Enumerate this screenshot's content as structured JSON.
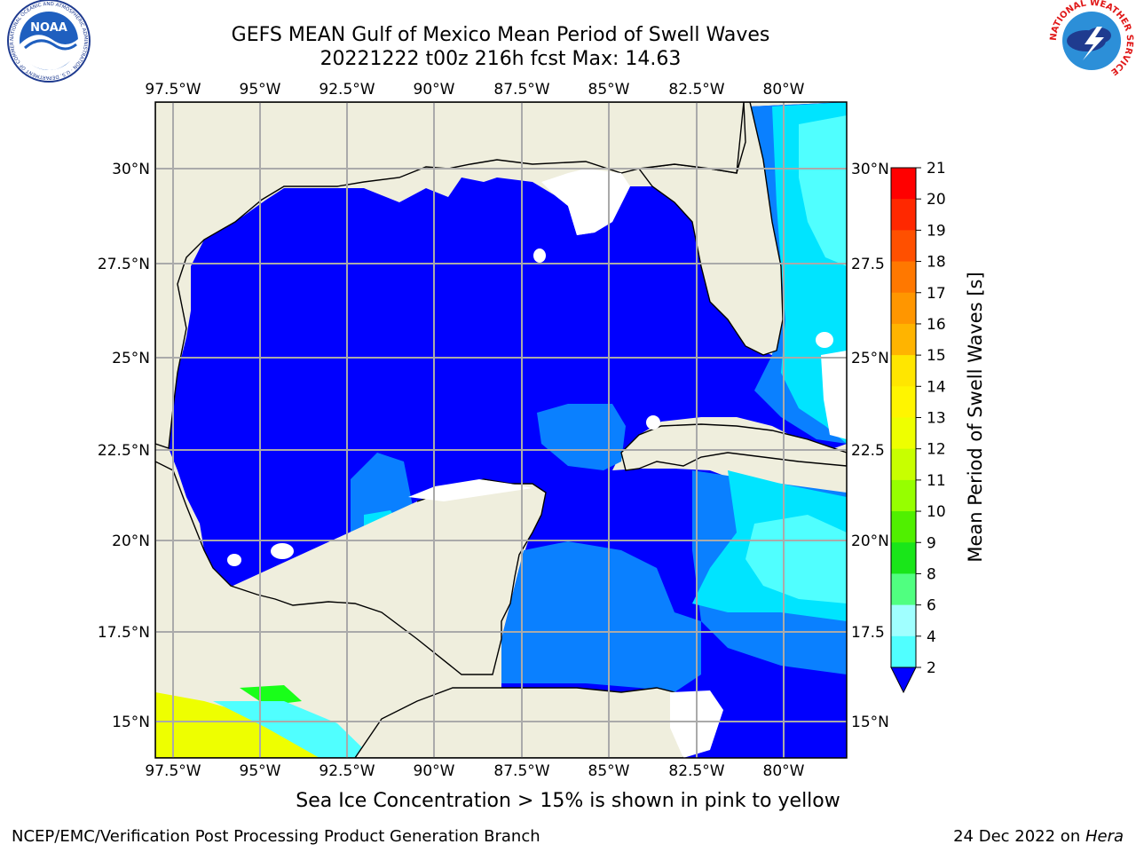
{
  "header": {
    "title_line1": "GEFS MEAN Gulf of Mexico Mean Period of Swell Waves",
    "title_line2": "20221222 t00z 216h fcst   Max: 14.63"
  },
  "logos": {
    "left": "NOAA",
    "left_ring": "NATIONAL OCEANIC AND ATMOSPHERIC ADMINISTRATION · U.S. DEPARTMENT OF COMMERCE",
    "right_ring": "NATIONAL WEATHER SERVICE"
  },
  "map": {
    "lon_labels": [
      "97.5°W",
      "95°W",
      "92.5°W",
      "90°W",
      "87.5°W",
      "85°W",
      "82.5°W",
      "80°W"
    ],
    "lat_labels_left": [
      "30°N",
      "27.5°N",
      "25°N",
      "22.5°N",
      "20°N",
      "17.5°N",
      "15°N"
    ],
    "lat_labels_right": [
      "30°N",
      "27.5",
      "25°N",
      "22.5",
      "20°N",
      "17.5",
      "15°N"
    ],
    "colors": {
      "land": "#efeedd",
      "water_low": "#0000ff",
      "water_2_4": "#0a80ff",
      "water_4_6": "#00e4ff",
      "water_6_8": "#50ffff",
      "ice_yellow": "#eeff00",
      "ice_green": "#19ff19",
      "grid": "#aaaaaa"
    }
  },
  "colorbar": {
    "title": "Mean Period of Swell Waves [s]",
    "ticks": [
      "21",
      "20",
      "19",
      "18",
      "17",
      "16",
      "15",
      "14",
      "13",
      "12",
      "11",
      "10",
      "9",
      "8",
      "6",
      "4",
      "2"
    ],
    "colors": [
      "#ff0000",
      "#ff2800",
      "#ff5000",
      "#ff7800",
      "#ff9600",
      "#ffb400",
      "#ffe600",
      "#fff500",
      "#eeff00",
      "#c8ff00",
      "#96ff00",
      "#50f000",
      "#19e619",
      "#50ff80",
      "#a0ffff",
      "#50ffff",
      "#00e4ff",
      "#0a80ff"
    ]
  },
  "caption": "Sea Ice Concentration > 15% is shown in pink to yellow",
  "footer": {
    "left": "NCEP/EMC/Verification Post Processing Product Generation Branch",
    "right_date": "24 Dec 2022 on ",
    "right_host": "Hera"
  }
}
